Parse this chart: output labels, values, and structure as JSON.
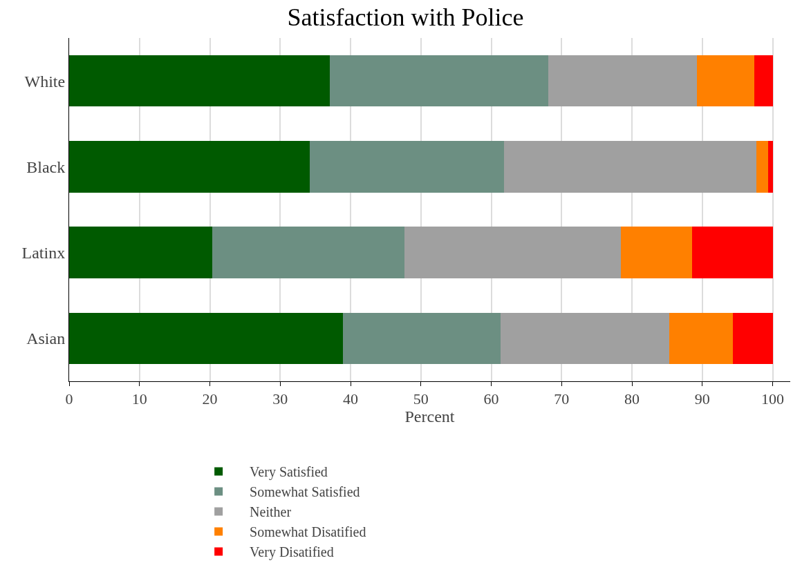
{
  "chart_data": {
    "type": "bar",
    "title": "Satisfaction with Police",
    "xlabel": "Percent",
    "orientation": "horizontal",
    "stacked": true,
    "categories": [
      "White",
      "Black",
      "Latinx",
      "Asian"
    ],
    "series": [
      {
        "name": "Very Satisfied",
        "color": "#005a00",
        "values": [
          37.0,
          34.2,
          20.3,
          38.9
        ]
      },
      {
        "name": "Somewhat Satisfied",
        "color": "#6c8f82",
        "values": [
          31.1,
          27.6,
          27.4,
          22.4
        ]
      },
      {
        "name": "Neither",
        "color": "#a0a0a0",
        "values": [
          21.1,
          35.9,
          30.7,
          24.0
        ]
      },
      {
        "name": "Somewhat Disatified",
        "color": "#ff8000",
        "values": [
          8.2,
          1.7,
          10.1,
          9.0
        ]
      },
      {
        "name": "Very Disatified",
        "color": "#ff0000",
        "values": [
          2.6,
          0.6,
          11.5,
          5.7
        ]
      }
    ],
    "xlim": [
      0,
      102.5
    ],
    "xticks": [
      0,
      10,
      20,
      30,
      40,
      50,
      60,
      70,
      80,
      90,
      100
    ],
    "grid": "x",
    "legend": "bottom"
  }
}
